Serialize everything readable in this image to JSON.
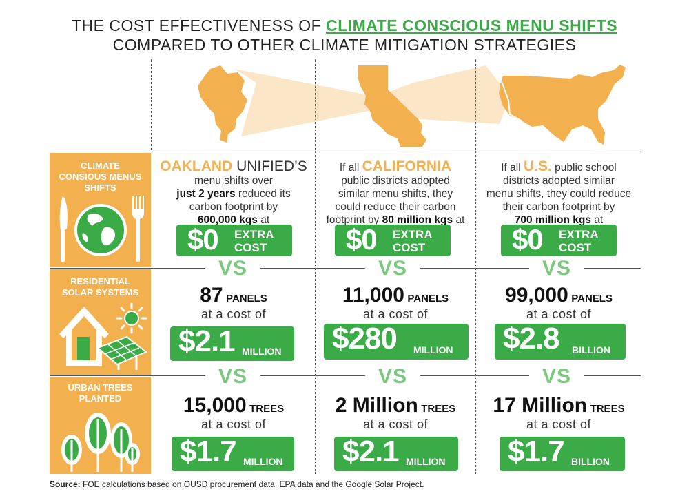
{
  "header": {
    "title_prefix": "THE COST EFFECTIVENESS OF ",
    "title_highlight": "CLIMATE CONSCIOUS MENU SHIFTS",
    "title_line2": "COMPARED TO OTHER CLIMATE MITIGATION STRATEGIES"
  },
  "rows": {
    "menus": {
      "label_l1": "CLIMATE",
      "label_l2": "CONSIOUS MENUS",
      "label_l3": "SHIFTS",
      "icons": [
        "knife-icon",
        "globe-icon",
        "fork-icon"
      ]
    },
    "solar": {
      "label_l1": "RESIDENTIAL",
      "label_l2": "SOLAR SYSTEMS",
      "icons": [
        "house-icon",
        "sun-icon",
        "solar-panel-icon"
      ]
    },
    "trees": {
      "label_l1": "URBAN TREES",
      "label_l2": "PLANTED",
      "icons": [
        "tree-icon"
      ]
    }
  },
  "columns": {
    "oakland": {
      "menu": {
        "name": "OAKLAND",
        "name_rest": " UNIFIED’S",
        "l2": "menu shifts over",
        "l3_bold": "just 2 years",
        "l3_rest": " reduced its",
        "l4": "carbon footprint by",
        "l5_bold": "600,000 kgs",
        "l5_rest": " at",
        "cost_big": "$0",
        "cost_l1": "EXTRA",
        "cost_l2": "COST"
      },
      "solar": {
        "count": "87",
        "unit": "PANELS",
        "cost_text": "at a cost of",
        "amount": "$2.1",
        "amount_unit": "MILLION"
      },
      "trees": {
        "count": "15,000",
        "unit": "TREES",
        "cost_text": "at a cost of",
        "amount": "$1.7",
        "amount_unit": "MILLION"
      }
    },
    "california": {
      "menu": {
        "l1_pre": "If all ",
        "name": "CALIFORNIA",
        "l2": "public districts adopted",
        "l3": "similar menu shifts, they",
        "l4": "could reduce their carbon",
        "l5_pre": "footprint by ",
        "l5_bold": "80 million kgs",
        "l5_rest": " at",
        "cost_big": "$0",
        "cost_l1": "EXTRA",
        "cost_l2": "COST"
      },
      "solar": {
        "count": "11,000",
        "unit": "PANELS",
        "cost_text": "at a cost of",
        "amount": "$280",
        "amount_unit": "MILLION"
      },
      "trees": {
        "count": "2 Million",
        "unit": "TREES",
        "cost_text": "at a cost of",
        "amount": "$2.1",
        "amount_unit": "MILLION"
      }
    },
    "us": {
      "menu": {
        "l1_pre": "If all ",
        "name": "U.S.",
        "l1_rest": " public school",
        "l2": "districts adopted similar",
        "l3": "menu shifts, they could reduce",
        "l4": "their carbon footprint by",
        "l5_bold": "700 million kgs",
        "l5_rest": " at",
        "cost_big": "$0",
        "cost_l1": "EXTRA",
        "cost_l2": "COST"
      },
      "solar": {
        "count": "99,000",
        "unit": "PANELS",
        "cost_text": "at a cost of",
        "amount": "$2.8",
        "amount_unit": "BILLION"
      },
      "trees": {
        "count": "17 Million",
        "unit": "TREES",
        "cost_text": "at a cost of",
        "amount": "$1.7",
        "amount_unit": "BILLION"
      }
    }
  },
  "vs_label": "VS",
  "footer": {
    "source_label": "Source:",
    "source_text": " FOE calculations based on OUSD procurement data, EPA data and the Google Solar Project."
  },
  "colors": {
    "green": "#3aab47",
    "light_green": "#7cc87f",
    "orange": "#f2b04e",
    "beam": "#fbe3c2"
  }
}
